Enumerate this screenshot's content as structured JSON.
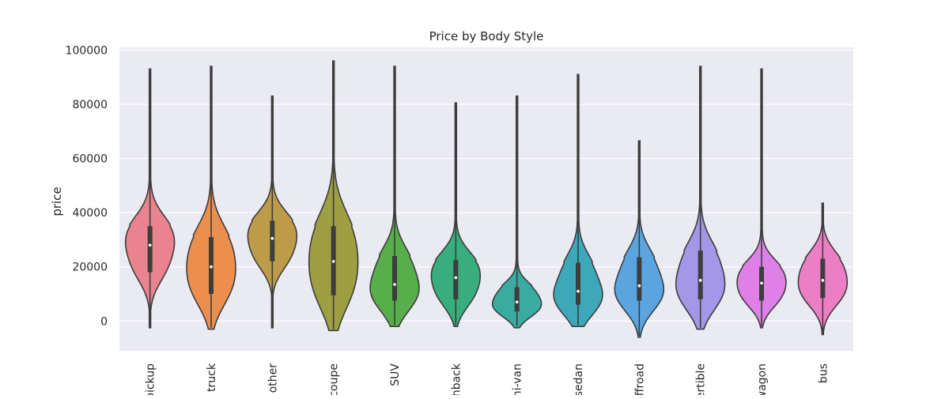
{
  "chart_data": {
    "type": "violin",
    "title": "Price by Body Style",
    "xlabel": "",
    "ylabel": "price",
    "ylim": [
      -11000,
      101000
    ],
    "yticks": [
      0,
      20000,
      40000,
      60000,
      80000,
      100000
    ],
    "ytick_labels": [
      "0",
      "20000",
      "40000",
      "60000",
      "80000",
      "100000"
    ],
    "grid": true,
    "background": "#eaeaf2",
    "categories": [
      "pickup",
      "truck",
      "other",
      "coupe",
      "SUV",
      "hatchback",
      "mini-van",
      "sedan",
      "offroad",
      "convertible",
      "wagon",
      "bus"
    ],
    "category_labels_visible": [
      "pickup",
      "truck",
      "other",
      "coupe",
      "SUV",
      "hback",
      "ni-van",
      "sedan",
      "ffroad",
      "ertible",
      "wagon",
      "bus"
    ],
    "colors": [
      "#e9838f",
      "#ec8f4d",
      "#be9b49",
      "#9e9f42",
      "#57ae4b",
      "#38ad7d",
      "#3aaba1",
      "#3ea8bb",
      "#5aa5e0",
      "#a497e8",
      "#df80e6",
      "#ea7fc3"
    ],
    "series": [
      {
        "name": "pickup",
        "min": -2500,
        "q1": 18000,
        "median": 28000,
        "q3": 35000,
        "max": 93000
      },
      {
        "name": "truck",
        "min": -3000,
        "q1": 10000,
        "median": 20000,
        "q3": 31000,
        "max": 94000
      },
      {
        "name": "other",
        "min": -2500,
        "q1": 22000,
        "median": 30500,
        "q3": 37000,
        "max": 83000
      },
      {
        "name": "coupe",
        "min": -3500,
        "q1": 9500,
        "median": 22000,
        "q3": 35000,
        "max": 96000
      },
      {
        "name": "SUV",
        "min": -2000,
        "q1": 7500,
        "median": 13500,
        "q3": 24000,
        "max": 94000
      },
      {
        "name": "hatchback",
        "min": -2000,
        "q1": 8000,
        "median": 16000,
        "q3": 22500,
        "max": 80500
      },
      {
        "name": "mini-van",
        "min": -2500,
        "q1": 3500,
        "median": 7000,
        "q3": 12500,
        "max": 83000
      },
      {
        "name": "sedan",
        "min": -2000,
        "q1": 6000,
        "median": 11000,
        "q3": 21500,
        "max": 91000
      },
      {
        "name": "offroad",
        "min": -6000,
        "q1": 7500,
        "median": 13000,
        "q3": 23500,
        "max": 66500
      },
      {
        "name": "convertible",
        "min": -3000,
        "q1": 8000,
        "median": 15000,
        "q3": 26000,
        "max": 94000
      },
      {
        "name": "wagon",
        "min": -2500,
        "q1": 7500,
        "median": 14000,
        "q3": 20000,
        "max": 93000
      },
      {
        "name": "bus",
        "min": -5000,
        "q1": 8500,
        "median": 15000,
        "q3": 23000,
        "max": 43500
      }
    ]
  }
}
